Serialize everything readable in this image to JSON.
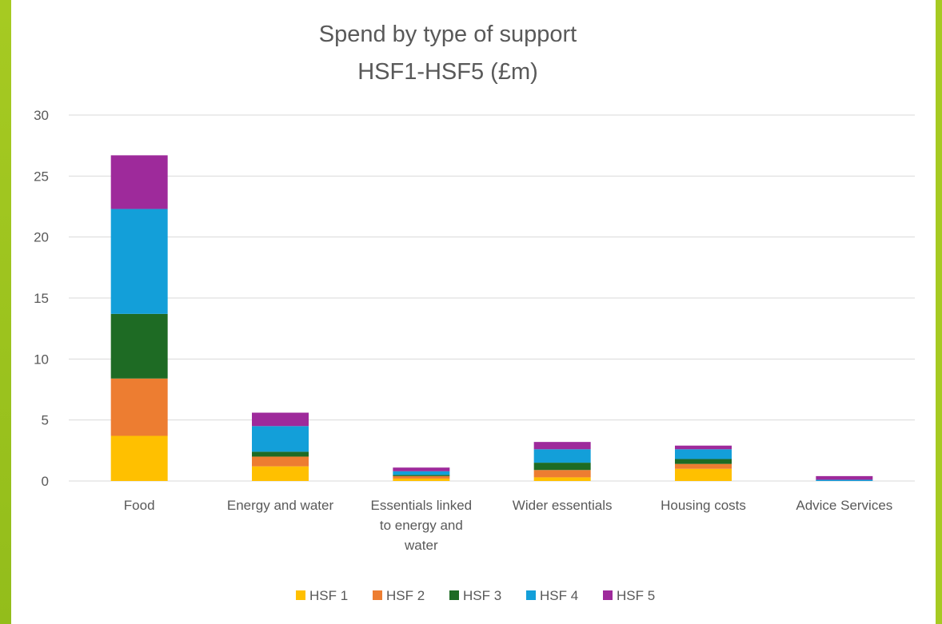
{
  "chart_data": {
    "type": "bar",
    "stacked": true,
    "title": [
      "Spend by type of support",
      "HSF1-HSF5 (£m)"
    ],
    "xlabel": "",
    "ylabel": "",
    "ylim": [
      0,
      30
    ],
    "yticks": [
      0,
      5,
      10,
      15,
      20,
      25,
      30
    ],
    "grid": true,
    "legend_position": "bottom",
    "categories": [
      [
        "Food"
      ],
      [
        "Energy and water"
      ],
      [
        "Essentials linked",
        "to energy and",
        "water"
      ],
      [
        "Wider essentials"
      ],
      [
        "Housing costs"
      ],
      [
        "Advice Services"
      ]
    ],
    "series": [
      {
        "name": "HSF 1",
        "color": "#FFC000",
        "values": [
          3.7,
          1.2,
          0.2,
          0.3,
          1.0,
          0.0
        ]
      },
      {
        "name": "HSF 2",
        "color": "#ED7D31",
        "values": [
          4.7,
          0.8,
          0.2,
          0.6,
          0.4,
          0.0
        ]
      },
      {
        "name": "HSF 3",
        "color": "#1E6B24",
        "values": [
          5.3,
          0.4,
          0.1,
          0.6,
          0.4,
          0.0
        ]
      },
      {
        "name": "HSF 4",
        "color": "#139FD9",
        "values": [
          8.6,
          2.1,
          0.3,
          1.1,
          0.8,
          0.1
        ]
      },
      {
        "name": "HSF 5",
        "color": "#9E2A9B",
        "values": [
          4.4,
          1.1,
          0.3,
          0.6,
          0.3,
          0.3
        ]
      }
    ]
  }
}
